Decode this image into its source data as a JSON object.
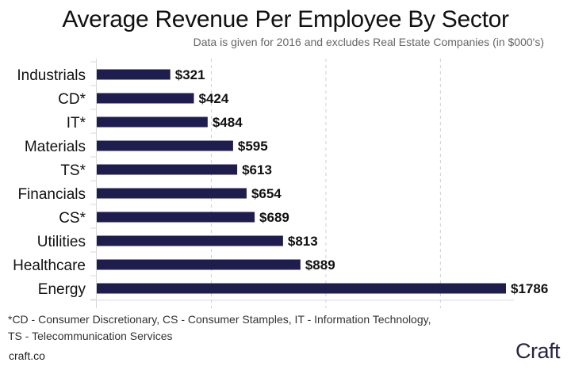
{
  "chart_data": {
    "type": "bar",
    "orientation": "horizontal",
    "title": "Average Revenue Per Employee By Sector",
    "subtitle": "Data is given for 2016 and excludes Real Estate Companies (in $000's)",
    "xlabel": "",
    "ylabel": "",
    "categories": [
      "Industrials",
      "CD*",
      "IT*",
      "Materials",
      "TS*",
      "Financials",
      "CS*",
      "Utilities",
      "Healthcare",
      "Energy"
    ],
    "values": [
      321,
      424,
      484,
      595,
      613,
      654,
      689,
      813,
      889,
      1786
    ],
    "value_labels": [
      "$321",
      "$424",
      "$484",
      "$595",
      "$613",
      "$654",
      "$689",
      "$813",
      "$889",
      "$1786"
    ],
    "xlim": [
      0,
      1950
    ],
    "x_gridlines": [
      500,
      1000,
      1500
    ],
    "grid": "vertical-dashed",
    "x_tick_labels_shown": false,
    "bar_color": "#1f1d4e",
    "legend": "none"
  },
  "footnote": {
    "line1": "*CD - Consumer Discretionary, CS - Consumer Stamples, IT - Information Technology,",
    "line2": "TS - Telecommunication Services"
  },
  "source": "craft.co",
  "logo": "Craft",
  "colors": {
    "bar": "#1f1d4e",
    "logo": "#2a2342",
    "grid": "#cfcfcf",
    "axis": "#d8d8d8"
  }
}
